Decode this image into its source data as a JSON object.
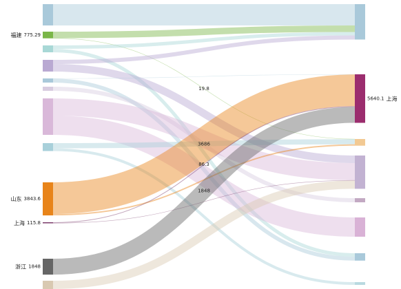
{
  "chart_data": {
    "type": "sankey",
    "sources": [
      {
        "color": "#a9c9da"
      },
      {
        "name": "福建",
        "value": 775.29,
        "color": "#7ab648"
      },
      {
        "color": "#a8d8d6"
      },
      {
        "color": "#b9a9d2"
      },
      {
        "color": "#a9c9da"
      },
      {
        "color": "#d8cce0"
      },
      {
        "color": "#d9b8d9"
      },
      {
        "color": "#a8d0da"
      },
      {
        "name": "山东",
        "value": 3843.6,
        "color": "#e8841a"
      },
      {
        "name": "上海",
        "value": 115.8,
        "color": "#7a3a6a"
      },
      {
        "name": "浙江",
        "value": 1848,
        "color": "#666666"
      },
      {
        "color": "#d9c9b1"
      }
    ],
    "targets": [
      {
        "color": "#a9c9da"
      },
      {
        "name": "上海",
        "value": 5640.1,
        "color": "#9b2d6e"
      },
      {
        "color": "#f2c993"
      },
      {
        "color": "#c2b2d2"
      },
      {
        "color": "#c3a9c3"
      },
      {
        "color": "#d9b2d6"
      },
      {
        "color": "#a9c9da"
      },
      {
        "color": "#b9d9e0"
      }
    ],
    "links": [
      {
        "source": 0,
        "target": 0,
        "value": 2480
      },
      {
        "source": 1,
        "target": 0,
        "value": 755.49
      },
      {
        "source": 1,
        "target": 2,
        "value": 19.8,
        "show_label": true
      },
      {
        "source": 2,
        "target": 0,
        "value": 400
      },
      {
        "source": 2,
        "target": 6,
        "value": 400
      },
      {
        "source": 3,
        "target": 0,
        "value": 480
      },
      {
        "source": 3,
        "target": 3,
        "value": 880
      },
      {
        "source": 4,
        "target": 1,
        "value": 19.8
      },
      {
        "source": 4,
        "target": 6,
        "value": 460.2
      },
      {
        "source": 5,
        "target": 4,
        "value": 480
      },
      {
        "source": 6,
        "target": 3,
        "value": 2000
      },
      {
        "source": 6,
        "target": 5,
        "value": 2240
      },
      {
        "source": 7,
        "target": 2,
        "value": 600
      },
      {
        "source": 7,
        "target": 7,
        "value": 320
      },
      {
        "source": 8,
        "target": 1,
        "value": 3686,
        "show_label": true
      },
      {
        "source": 8,
        "target": 2,
        "value": 157.6
      },
      {
        "source": 9,
        "target": 1,
        "value": 86.3,
        "show_label": true
      },
      {
        "source": 9,
        "target": 3,
        "value": 29.5
      },
      {
        "source": 10,
        "target": 1,
        "value": 1848,
        "show_label": true
      },
      {
        "source": 11,
        "target": 3,
        "value": 960
      }
    ]
  }
}
